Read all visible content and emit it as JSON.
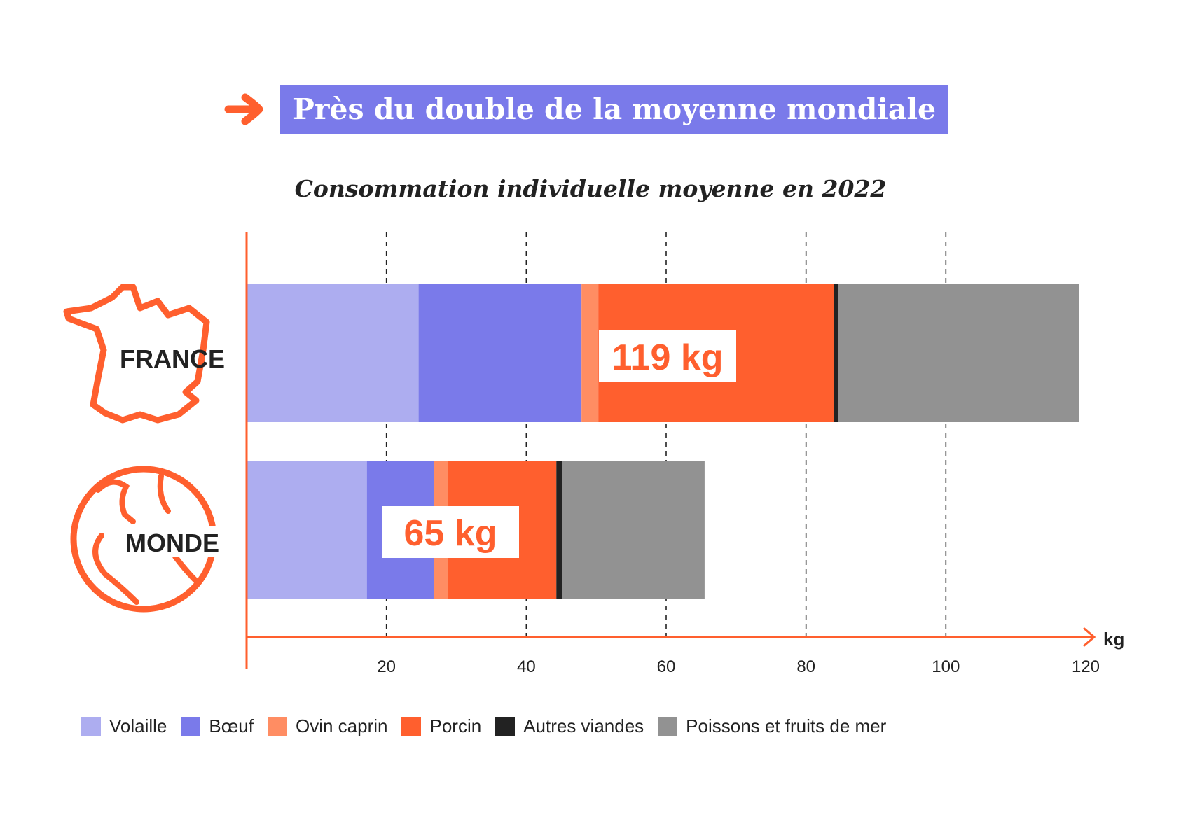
{
  "headline": "Près du double de la moyenne mondiale",
  "subtitle": "Consommation individuelle moyenne en 2022",
  "colors": {
    "accent": "#ff5f2e",
    "headline_bg": "#7a7aea",
    "axis": "#ff5f2e",
    "country_label": "#222222"
  },
  "chart_data": {
    "type": "bar",
    "orientation": "horizontal",
    "stacked": true,
    "categories": [
      "FRANCE",
      "MONDE"
    ],
    "category_icons": [
      "france-map-icon",
      "globe-icon"
    ],
    "series": [
      {
        "name": "Volaille",
        "color": "#adadf0",
        "values": [
          24.6,
          17.2
        ]
      },
      {
        "name": "Bœuf",
        "color": "#7a7aea",
        "values": [
          23.3,
          9.6
        ]
      },
      {
        "name": "Ovin caprin",
        "color": "#ff8d63",
        "values": [
          2.4,
          2.0
        ]
      },
      {
        "name": "Porcin",
        "color": "#ff5f2e",
        "values": [
          33.7,
          15.5
        ]
      },
      {
        "name": "Autres viandes",
        "color": "#222222",
        "values": [
          0.6,
          0.8
        ]
      },
      {
        "name": "Poissons et fruits de mer",
        "color": "#929292",
        "values": [
          34.4,
          20.4
        ]
      }
    ],
    "totals": [
      {
        "value": 119,
        "label": "119 kg"
      },
      {
        "value": 65,
        "label": "65 kg"
      }
    ],
    "xlabel": "kg",
    "xlim": [
      0,
      120
    ],
    "xticks": [
      20,
      40,
      60,
      80,
      100,
      120
    ],
    "grid": "dashed-vertical"
  }
}
